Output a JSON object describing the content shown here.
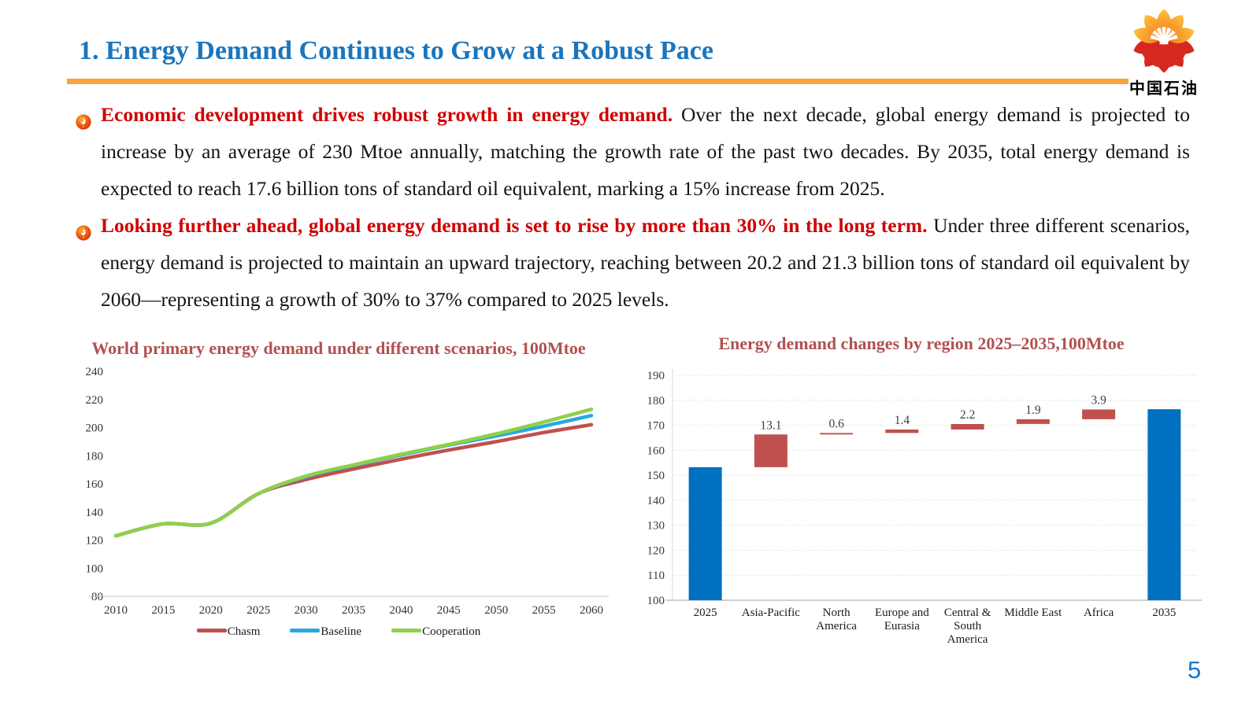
{
  "header": {
    "title": "1. Energy Demand Continues to Grow at a Robust Pace",
    "logo_text": "中国石油",
    "logo_icon": "cnpc-petal-sunburst-icon"
  },
  "colors": {
    "title_blue": "#1B75BC",
    "divider_orange": "#F9A33C",
    "lead_red": "#D00000",
    "chart_title_red": "#B15150",
    "page_number_blue": "#1778C8",
    "waterfall_total_blue": "#0070C0",
    "waterfall_delta_red": "#C0504D"
  },
  "bullets": [
    {
      "icon": "flame-icon",
      "lead": "Economic development drives robust growth in energy demand.",
      "body": "Over the next decade, global energy demand is projected to increase by an average of 230 Mtoe annually, matching the growth rate of the past two decades. By 2035, total energy demand is expected to reach 17.6 billion tons of standard oil equivalent, marking a 15% increase from 2025."
    },
    {
      "icon": "flame-icon",
      "lead": "Looking further ahead, global energy demand is set to rise by more than 30% in the long term.",
      "body": "Under three different scenarios, energy demand is projected to maintain an upward trajectory, reaching between 20.2 and 21.3 billion tons of standard oil equivalent by 2060—representing a growth of 30% to 37% compared to 2025 levels."
    }
  ],
  "chart_data": [
    {
      "type": "line",
      "title": "World primary energy demand under different scenarios, 100Mtoe",
      "x": [
        2010,
        2015,
        2020,
        2025,
        2030,
        2035,
        2040,
        2045,
        2050,
        2055,
        2060
      ],
      "xlabel": "",
      "ylabel": "",
      "ylim": [
        80,
        240
      ],
      "ytick_step": 20,
      "grid": false,
      "legend_position": "bottom",
      "series": [
        {
          "name": "Chasm",
          "color": "#C0504D",
          "values": [
            123,
            131.5,
            132,
            153,
            163,
            170.5,
            177.5,
            184,
            190,
            196.5,
            202
          ]
        },
        {
          "name": "Baseline",
          "color": "#29A8E0",
          "values": [
            123,
            131.5,
            132,
            153,
            165,
            173,
            180.5,
            187.5,
            194,
            201,
            208.5
          ]
        },
        {
          "name": "Cooperation",
          "color": "#8FD04A",
          "values": [
            123,
            131.5,
            132,
            153,
            165.5,
            173.5,
            181,
            188,
            195.5,
            204,
            213
          ]
        }
      ]
    },
    {
      "type": "bar",
      "subtype": "waterfall",
      "title": "Energy demand changes by region 2025–2035,100Mtoe",
      "ylim": [
        100,
        190
      ],
      "ytick_step": 10,
      "grid": true,
      "total_color": "#0070C0",
      "delta_color": "#C0504D",
      "columns": [
        {
          "label": "2025",
          "type": "total",
          "value": 153.2,
          "data_label": ""
        },
        {
          "label": "Asia-Pacific",
          "type": "delta",
          "value": 13.1,
          "data_label": "13.1"
        },
        {
          "label": "North America",
          "type": "delta",
          "value": 0.6,
          "data_label": "0.6"
        },
        {
          "label": "Europe and Eurasia",
          "type": "delta",
          "value": 1.4,
          "data_label": "1.4"
        },
        {
          "label": "Central & South America",
          "type": "delta",
          "value": 2.2,
          "data_label": "2.2"
        },
        {
          "label": "Middle East",
          "type": "delta",
          "value": 1.9,
          "data_label": "1.9"
        },
        {
          "label": "Africa",
          "type": "delta",
          "value": 3.9,
          "data_label": "3.9"
        },
        {
          "label": "2035",
          "type": "total",
          "value": 176.4,
          "data_label": ""
        }
      ]
    }
  ],
  "footer": {
    "page_number": "5"
  }
}
